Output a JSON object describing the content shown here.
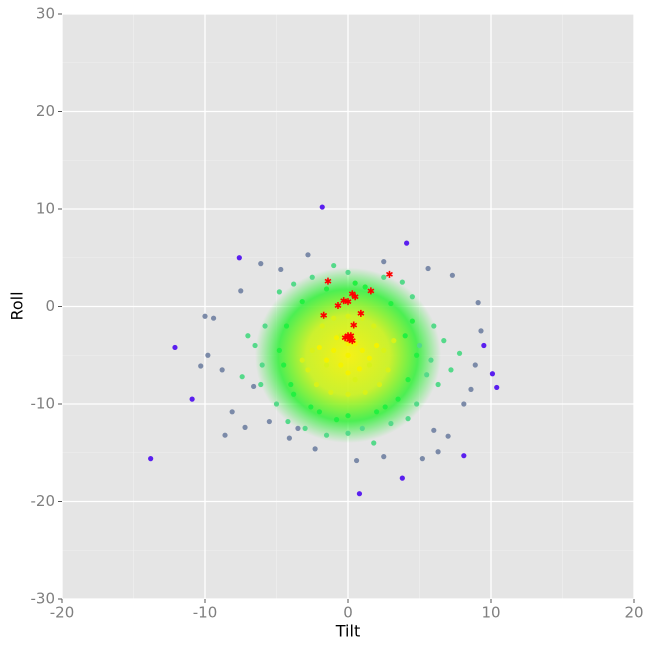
{
  "chart_data": {
    "type": "scatter",
    "xlabel": "Tilt",
    "ylabel": "Roll",
    "xlim": [
      -20,
      20
    ],
    "ylim": [
      -30,
      30
    ],
    "xticks": [
      -20,
      -10,
      0,
      10,
      20
    ],
    "yticks": [
      -30,
      -20,
      -10,
      0,
      10,
      20,
      30
    ],
    "minor_xticks": [
      -15,
      -5,
      5,
      15
    ],
    "minor_yticks": [
      -25,
      -15,
      -5,
      5,
      15,
      25
    ],
    "grid": true,
    "background": "#e5e5e5",
    "series": [
      {
        "color": "#5a1fef",
        "marker": "circle",
        "x": [
          -13.8,
          0.8,
          3.8,
          8.1,
          10.4,
          10.1,
          -1.8,
          -10.9,
          4.1,
          -7.6,
          -12.1,
          9.5
        ],
        "y": [
          -15.6,
          -19.2,
          -17.6,
          -15.3,
          -8.3,
          -6.9,
          10.2,
          -9.5,
          6.5,
          5.0,
          -4.2,
          -4.0
        ]
      },
      {
        "color": "#7b8aa8",
        "marker": "circle",
        "x": [
          -6.1,
          -7.5,
          -9.4,
          -9.8,
          -8.1,
          -7.2,
          -5.5,
          -4.1,
          -2.3,
          0.6,
          2.5,
          5.2,
          6.3,
          7.0,
          8.1,
          8.9,
          9.3,
          7.3,
          5.6,
          2.5,
          -2.8,
          -4.7,
          6.0,
          -6.6,
          -8.8,
          8.6,
          -3.5,
          9.1,
          -10.3,
          -10.0,
          -8.6
        ],
        "y": [
          4.4,
          1.6,
          -1.2,
          -5.0,
          -10.8,
          -12.4,
          -11.8,
          -13.5,
          -14.6,
          -15.8,
          -15.4,
          -15.6,
          -14.9,
          -13.3,
          -10.0,
          -6.0,
          -2.5,
          3.2,
          3.9,
          4.6,
          5.3,
          3.8,
          -12.7,
          -8.2,
          -6.5,
          -8.5,
          -12.5,
          0.4,
          -6.1,
          -1.0,
          -13.2
        ]
      },
      {
        "color": "#55d98a",
        "marker": "circle",
        "x": [
          5.0,
          5.5,
          4.8,
          3.0,
          0.0,
          -3.0,
          -5.0,
          -6.0,
          -5.8,
          -4.8,
          -2.5,
          0.0,
          2.5,
          4.5,
          6.0,
          6.3,
          -6.5,
          1.0,
          -1.5,
          3.8,
          -3.8,
          5.8,
          -6.1,
          4.2,
          -4.2,
          6.7,
          -7.0,
          7.2,
          -7.4,
          7.8,
          -1.0,
          1.8
        ],
        "y": [
          -4.0,
          -7.0,
          -10.0,
          -12.0,
          -13.0,
          -12.5,
          -10.0,
          -6.0,
          -2.0,
          1.5,
          3.0,
          3.5,
          3.0,
          1.0,
          -2.0,
          -8.0,
          -4.0,
          -12.5,
          -13.2,
          2.5,
          2.3,
          -5.5,
          -8.0,
          -11.5,
          -11.8,
          -3.5,
          -3.0,
          -6.5,
          -7.2,
          -4.8,
          4.2,
          -14.0
        ]
      },
      {
        "color": "#22f040",
        "marker": "circle",
        "x": [
          4.0,
          4.2,
          3.5,
          2.0,
          0.0,
          -2.0,
          -3.8,
          -4.5,
          -4.3,
          -3.2,
          -1.5,
          1.2,
          3.0,
          4.8,
          -4.8,
          2.6,
          -2.6,
          0.5,
          -0.8,
          4.5,
          -4.0
        ],
        "y": [
          -3.0,
          -7.5,
          -9.5,
          -10.8,
          -11.2,
          -10.8,
          -9.0,
          -6.0,
          -2.0,
          0.5,
          1.8,
          2.0,
          0.3,
          -5.0,
          -4.5,
          -10.3,
          -10.3,
          2.4,
          -11.6,
          -1.5,
          -8.0
        ]
      },
      {
        "color": "#d8f21a",
        "marker": "circle",
        "x": [
          -2.5,
          -1.8,
          -1.0,
          0.0,
          1.0,
          1.8,
          2.5,
          2.8,
          2.2,
          1.2,
          0.0,
          -1.2,
          -2.2,
          -2.8,
          -1.5,
          1.5,
          -0.5,
          0.5,
          3.2,
          -3.2
        ],
        "y": [
          -4.5,
          -2.0,
          -1.2,
          -1.0,
          -1.2,
          -2.0,
          -4.5,
          -6.5,
          -8.0,
          -8.8,
          -9.0,
          -8.8,
          -8.0,
          -6.5,
          -6.0,
          -6.0,
          -3.0,
          -7.5,
          -3.5,
          -5.5
        ]
      },
      {
        "color": "#f4f300",
        "marker": "circle",
        "x": [
          0.0,
          -1.0,
          1.0,
          -0.5,
          0.5,
          -1.5,
          1.5,
          0.0,
          -0.8,
          0.8,
          0.0,
          -2.0,
          2.0
        ],
        "y": [
          -5.0,
          -4.5,
          -4.5,
          -6.0,
          -3.8,
          -5.5,
          -5.3,
          -6.8,
          -3.2,
          -6.4,
          -3.8,
          -4.2,
          -4.0
        ]
      },
      {
        "color": "#ff0000",
        "marker": "star",
        "x": [
          -1.4,
          2.9,
          1.6,
          0.3,
          0.5,
          -0.3,
          0.0,
          -0.7,
          -1.7,
          0.9,
          0.4,
          0.0,
          -0.2,
          0.1,
          0.3,
          0.2
        ],
        "y": [
          2.6,
          3.3,
          1.6,
          1.3,
          1.0,
          0.6,
          0.5,
          0.1,
          -0.9,
          -0.7,
          -1.9,
          -3.0,
          -3.2,
          -3.4,
          -3.5,
          -3.0
        ]
      }
    ]
  }
}
